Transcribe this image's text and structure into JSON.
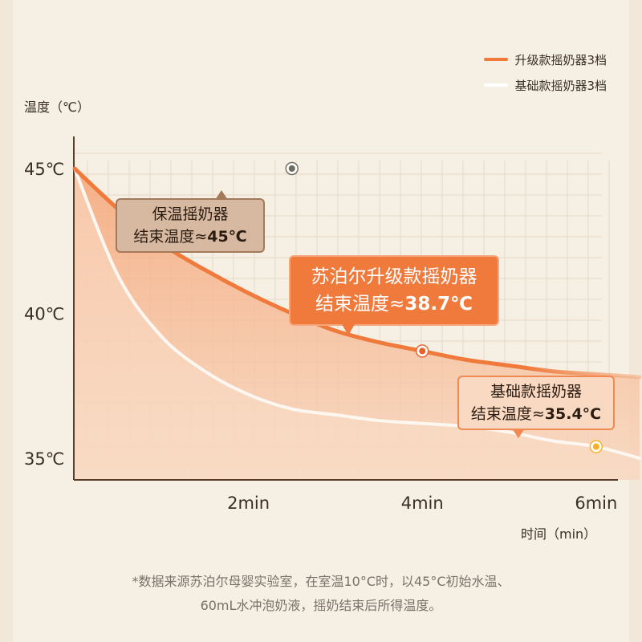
{
  "legend": [
    {
      "label": "升级款摇奶器3档",
      "color": "#f07a3c"
    },
    {
      "label": "基础款摇奶器3档",
      "color": "#ffffff"
    }
  ],
  "callouts": {
    "keep_warm": {
      "line1": "保温摇奶器",
      "line2_prefix": "结束温度≈",
      "line2_value": "45℃"
    },
    "upgraded": {
      "line1": "苏泊尔升级款摇奶器",
      "line2_prefix": "结束温度≈",
      "line2_value": "38.7℃"
    },
    "basic": {
      "line1": "基础款摇奶器",
      "line2_prefix": "结束温度≈",
      "line2_value": "35.4°C"
    }
  },
  "footnote": {
    "line1": "*数据来源苏泊尔母婴实验室，在室温10°C时，以45°C初始水温、",
    "line2": "60mL水冲泡奶液，摇奶结束后所得温度。"
  },
  "chart_data": {
    "type": "line",
    "ylabel": "温度（℃）",
    "xlabel": "时间（min）",
    "y_ticks": [
      "45℃",
      "40℃",
      "35℃"
    ],
    "y_tick_values": [
      45,
      40,
      35
    ],
    "x_ticks": [
      "2min",
      "4min",
      "6min"
    ],
    "x_tick_values": [
      2,
      4,
      6
    ],
    "ylim": [
      34.2,
      46.0
    ],
    "xlim": [
      0,
      6.8
    ],
    "grid": true,
    "legend_position": "top-right",
    "series": [
      {
        "name": "升级款摇奶器3档",
        "color": "#f07a3c",
        "x": [
          0,
          0.5,
          1,
          1.5,
          2,
          2.5,
          3,
          3.5,
          4,
          4.5,
          5,
          5.5,
          6,
          6.5
        ],
        "y": [
          45,
          43.6,
          42.4,
          41.5,
          40.7,
          40.0,
          39.4,
          39.0,
          38.7,
          38.4,
          38.2,
          38.0,
          37.9,
          37.8
        ]
      },
      {
        "name": "基础款摇奶器3档",
        "color": "#fdf7f1",
        "x": [
          0,
          0.5,
          1,
          1.5,
          2,
          2.5,
          3,
          3.5,
          4,
          4.5,
          5,
          5.5,
          6,
          6.5
        ],
        "y": [
          45,
          41.3,
          39.2,
          38.0,
          37.2,
          36.7,
          36.5,
          36.3,
          36.2,
          36.1,
          35.9,
          35.6,
          35.4,
          35.0
        ]
      },
      {
        "name": "保温摇奶器",
        "color": "#a9774f",
        "x": [
          0,
          6.8
        ],
        "y": [
          45,
          45
        ]
      }
    ],
    "markers": [
      {
        "x": 2.5,
        "y": 45,
        "color": "#6d6b64"
      },
      {
        "x": 4,
        "y": 38.7,
        "color": "#e8602a"
      },
      {
        "x": 6,
        "y": 35.4,
        "color": "#f6b020"
      }
    ]
  }
}
